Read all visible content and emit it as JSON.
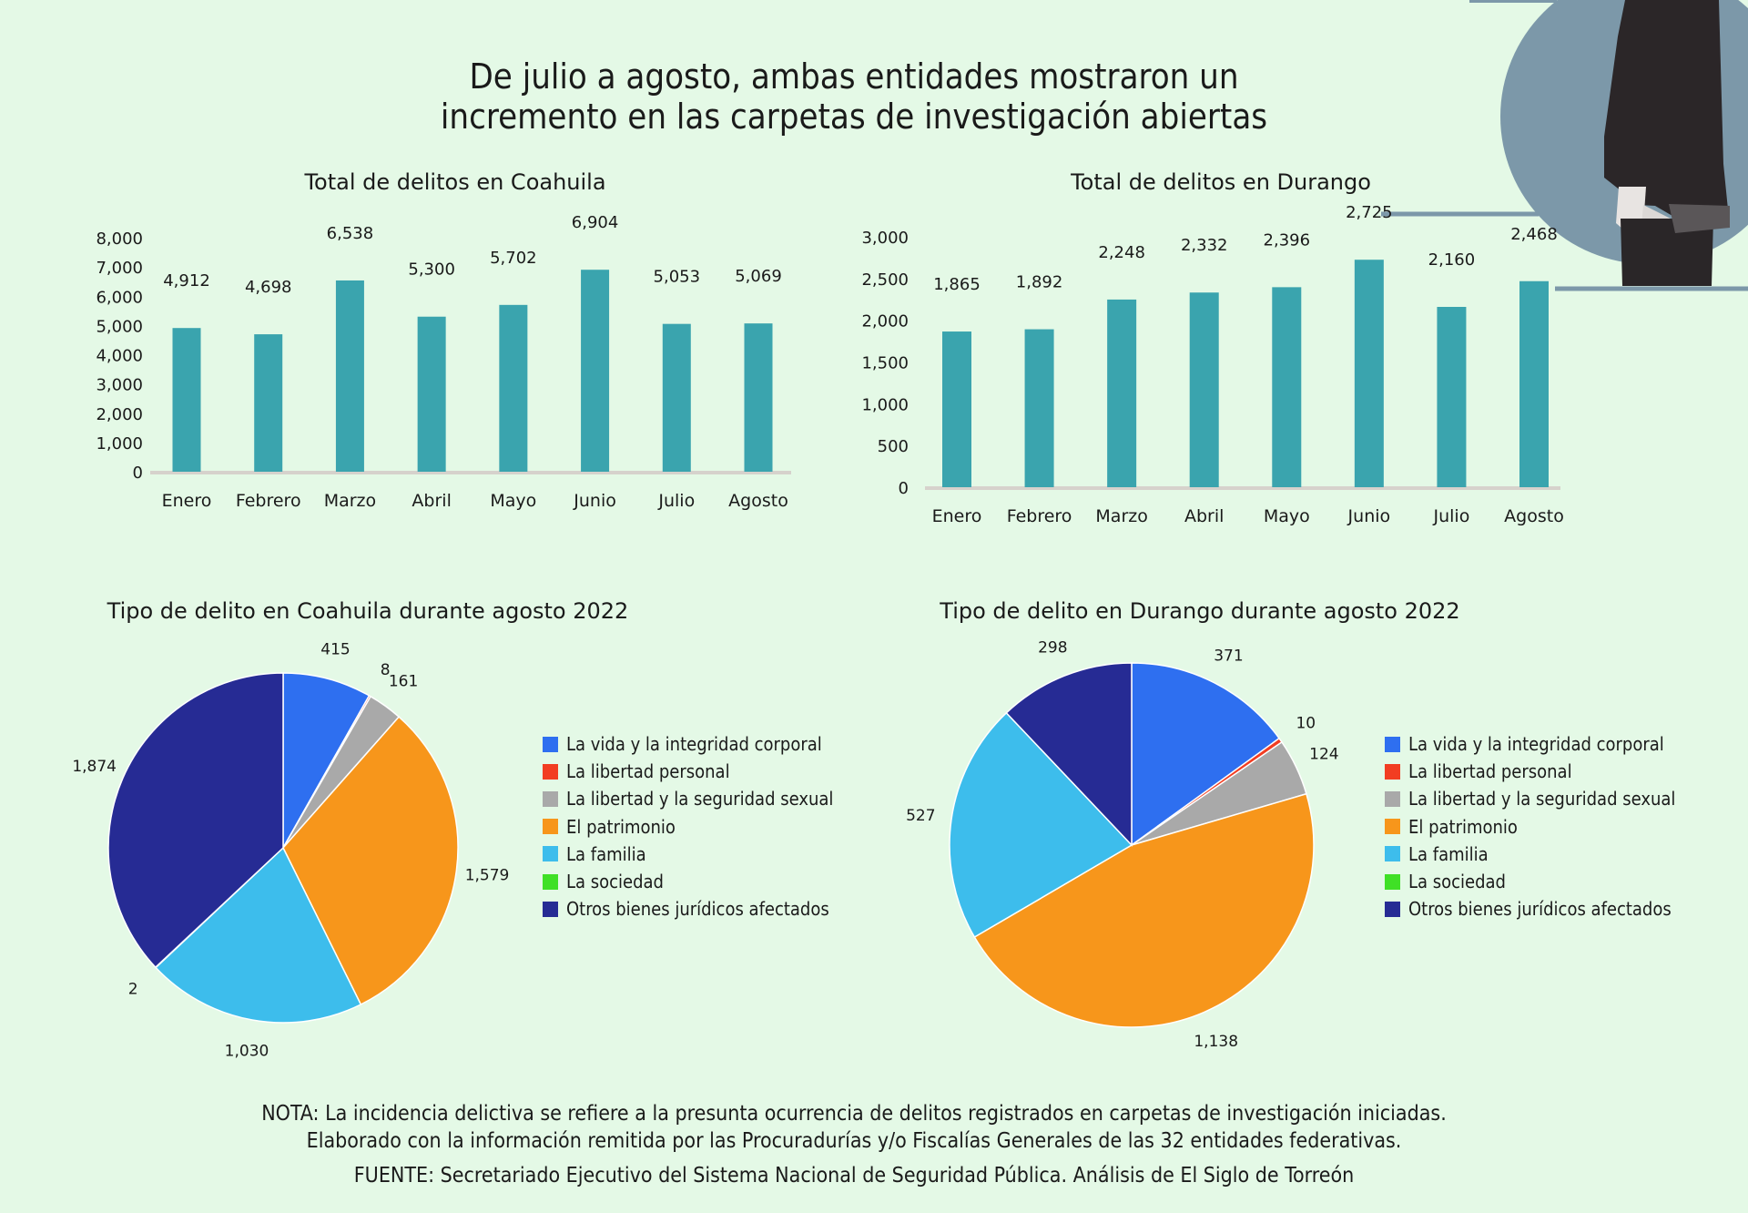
{
  "title_lines": [
    "De julio a agosto, ambas entidades mostraron un",
    "incremento en las carpetas de investigación abiertas"
  ],
  "colors": {
    "background": "#e4f9e6",
    "bar": "#3aa4ae",
    "circle": "#7c98a9"
  },
  "chart_data": [
    {
      "type": "bar",
      "title": "Total de delitos en Coahuila",
      "categories": [
        "Enero",
        "Febrero",
        "Marzo",
        "Abril",
        "Mayo",
        "Junio",
        "Julio",
        "Agosto"
      ],
      "values": [
        4912,
        4698,
        6538,
        5300,
        5702,
        6904,
        5053,
        5069
      ],
      "value_labels": [
        "4,912",
        "4,698",
        "6,538",
        "5,300",
        "5,702",
        "6,904",
        "5,053",
        "5,069"
      ],
      "ylim": [
        0,
        8000
      ],
      "yticks": [
        0,
        1000,
        2000,
        3000,
        4000,
        5000,
        6000,
        7000,
        8000
      ],
      "ytick_labels": [
        "0",
        "1,000",
        "2,000",
        "3,000",
        "4,000",
        "5,000",
        "6,000",
        "7,000",
        "8,000"
      ],
      "grid": false
    },
    {
      "type": "bar",
      "title": "Total de delitos en Durango",
      "categories": [
        "Enero",
        "Febrero",
        "Marzo",
        "Abril",
        "Mayo",
        "Junio",
        "Julio",
        "Agosto"
      ],
      "values": [
        1865,
        1892,
        2248,
        2332,
        2396,
        2725,
        2160,
        2468
      ],
      "value_labels": [
        "1,865",
        "1,892",
        "2,248",
        "2,332",
        "2,396",
        "2,725",
        "2,160",
        "2,468"
      ],
      "ylim": [
        0,
        3000
      ],
      "yticks": [
        0,
        500,
        1000,
        1500,
        2000,
        2500,
        3000
      ],
      "ytick_labels": [
        "0",
        "500",
        "1,000",
        "1,500",
        "2,000",
        "2,500",
        "3,000"
      ],
      "grid": false
    },
    {
      "type": "pie",
      "title": "Tipo de delito en Coahuila durante agosto 2022",
      "legend_placement": "right",
      "labels": [
        "La vida y la integridad corporal",
        "La libertad personal",
        "La libertad y la seguridad sexual",
        "El patrimonio",
        "La familia",
        "La sociedad",
        "Otros bienes jurídicos afectados"
      ],
      "values": [
        415,
        8,
        161,
        1579,
        1030,
        2,
        1874
      ],
      "value_labels": [
        "415",
        "8",
        "161",
        "1,579",
        "1,030",
        "2",
        "1,874"
      ],
      "colors": [
        "#2e6ff0",
        "#f23d22",
        "#a9a9a9",
        "#f7961b",
        "#3dbdec",
        "#3fe026",
        "#262b94"
      ]
    },
    {
      "type": "pie",
      "title": "Tipo de delito en Durango durante agosto 2022",
      "legend_placement": "right",
      "labels": [
        "La vida y la integridad corporal",
        "La libertad personal",
        "La libertad y la seguridad sexual",
        "El patrimonio",
        "La familia",
        "La sociedad",
        "Otros bienes jurídicos afectados"
      ],
      "values": [
        371,
        10,
        124,
        1138,
        527,
        null,
        298
      ],
      "value_labels": [
        "371",
        "10",
        "124",
        "1,138",
        "527",
        null,
        "298"
      ],
      "colors": [
        "#2e6ff0",
        "#f23d22",
        "#a9a9a9",
        "#f7961b",
        "#3dbdec",
        "#3fe026",
        "#262b94"
      ]
    }
  ],
  "footer": {
    "note_line1": "NOTA: La incidencia delictiva se refiere a la presunta ocurrencia de delitos registrados en carpetas de investigación iniciadas.",
    "note_line2": "Elaborado con la información remitida por las Procuradurías y/o Fiscalías Generales de las 32 entidades federativas.",
    "source": "FUENTE: Secretariado Ejecutivo del Sistema Nacional de Seguridad Pública. Análisis de El Siglo de Torreón"
  }
}
